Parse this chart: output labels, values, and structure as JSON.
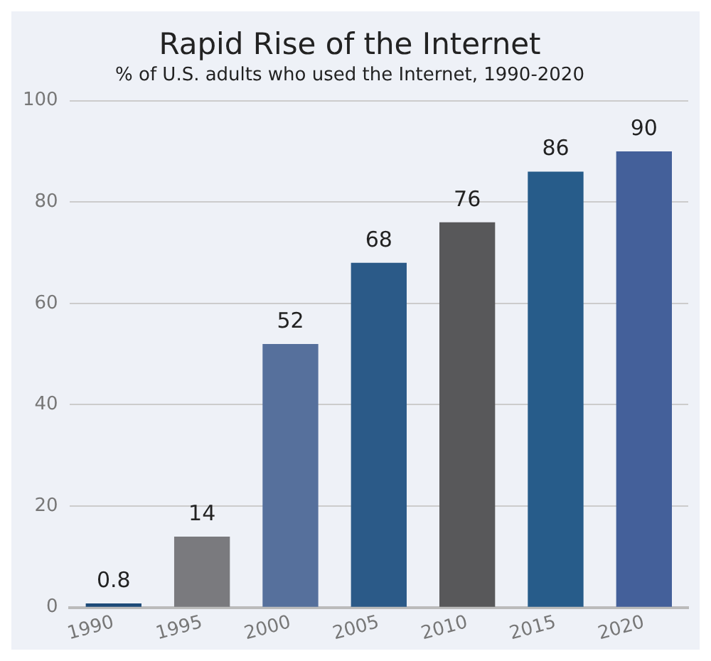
{
  "chart_data": {
    "type": "bar",
    "title": "Rapid Rise of the Internet",
    "subtitle": "% of U.S. adults who used the Internet, 1990-2020",
    "categories": [
      "1990",
      "1995",
      "2000",
      "2005",
      "2010",
      "2015",
      "2020"
    ],
    "values": [
      0.8,
      14,
      52,
      68,
      76,
      86,
      90
    ],
    "colors": [
      "#1d4a78",
      "#7a7a7e",
      "#56709c",
      "#2b5a88",
      "#58585a",
      "#275c8a",
      "#44609a"
    ],
    "ylim": [
      0,
      100
    ],
    "yticks": [
      0,
      20,
      40,
      60,
      80,
      100
    ],
    "grid": "y",
    "data_labels": true,
    "legend": false
  }
}
